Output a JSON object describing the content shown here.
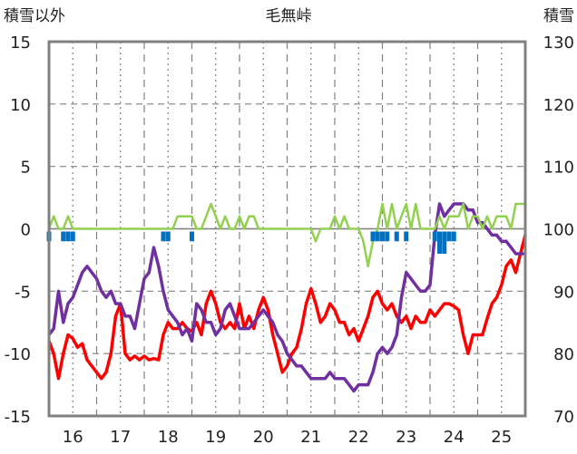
{
  "header": {
    "left_label": "積雪以外",
    "title": "毛無峠",
    "right_label": "積雪"
  },
  "chart_data": {
    "type": "line",
    "title": "毛無峠",
    "y_left_label": "積雪以外",
    "y_right_label": "積雪",
    "x_range": [
      15.5,
      25.5
    ],
    "ylim_left": [
      -15,
      15
    ],
    "ylim_right": [
      70,
      130
    ],
    "x_ticks": [
      "16",
      "17",
      "18",
      "19",
      "20",
      "21",
      "22",
      "23",
      "24",
      "25"
    ],
    "y_left_ticks": [
      "15",
      "10",
      "5",
      "0",
      "-5",
      "-10",
      "-15"
    ],
    "y_right_ticks": [
      "130",
      "120",
      "110",
      "100",
      "90",
      "80",
      "70"
    ],
    "grid": true,
    "colors": {
      "temperature": "#ff0000",
      "snow_depth": "#7030a0",
      "wind": "#92d050",
      "precipitation": "#0070c0",
      "frame": "#808080",
      "grid": "#808080"
    },
    "series": [
      {
        "key": "temperature",
        "axis": "left",
        "x": [
          15.5,
          15.6,
          15.7,
          15.8,
          15.9,
          16.0,
          16.1,
          16.2,
          16.3,
          16.4,
          16.5,
          16.6,
          16.7,
          16.8,
          16.9,
          17.0,
          17.1,
          17.2,
          17.3,
          17.4,
          17.5,
          17.6,
          17.7,
          17.8,
          17.9,
          18.0,
          18.1,
          18.2,
          18.3,
          18.4,
          18.5,
          18.6,
          18.7,
          18.8,
          18.9,
          19.0,
          19.1,
          19.2,
          19.3,
          19.4,
          19.5,
          19.6,
          19.7,
          19.8,
          19.9,
          20.0,
          20.1,
          20.2,
          20.3,
          20.4,
          20.5,
          20.6,
          20.7,
          20.8,
          20.9,
          21.0,
          21.1,
          21.2,
          21.3,
          21.4,
          21.5,
          21.6,
          21.7,
          21.8,
          21.9,
          22.0,
          22.1,
          22.2,
          22.3,
          22.4,
          22.5,
          22.6,
          22.7,
          22.8,
          22.9,
          23.0,
          23.1,
          23.2,
          23.3,
          23.4,
          23.5,
          23.6,
          23.7,
          23.8,
          23.9,
          24.0,
          24.1,
          24.2,
          24.3,
          24.4,
          24.5,
          24.6,
          24.7,
          24.8,
          24.9,
          25.0,
          25.1,
          25.2,
          25.3,
          25.4,
          25.5
        ],
        "y": [
          -9,
          -10,
          -12,
          -10,
          -8.5,
          -8.8,
          -9.5,
          -9.2,
          -10.5,
          -11,
          -11.5,
          -12,
          -11.5,
          -10,
          -7,
          -6,
          -10,
          -10.5,
          -10.2,
          -10.5,
          -10.2,
          -10.5,
          -10.4,
          -10.5,
          -8.5,
          -7.5,
          -8,
          -8,
          -7.5,
          -8,
          -8.2,
          -7.5,
          -8.5,
          -6,
          -5,
          -6,
          -7.5,
          -8,
          -7.5,
          -8,
          -6,
          -8,
          -7,
          -8,
          -6.5,
          -5.5,
          -6.5,
          -8.5,
          -10,
          -11.5,
          -11,
          -10,
          -9.5,
          -8,
          -6,
          -4.8,
          -6,
          -7.5,
          -7,
          -6,
          -6.5,
          -7.5,
          -7.5,
          -8.5,
          -8,
          -9,
          -8,
          -7,
          -5.5,
          -5,
          -6,
          -6.5,
          -6,
          -7,
          -7.5,
          -7,
          -8,
          -7,
          -7.5,
          -7.5,
          -6.5,
          -7,
          -6.5,
          -6,
          -6,
          -6.2,
          -6.5,
          -8.5,
          -10,
          -8.5,
          -8.5,
          -8.5,
          -7.2,
          -6,
          -5.5,
          -4.5,
          -3,
          -2.5,
          -3.5,
          -2,
          -0.5
        ]
      },
      {
        "key": "snow_depth",
        "axis": "right",
        "x": [
          15.5,
          15.6,
          15.7,
          15.8,
          15.9,
          16.0,
          16.1,
          16.2,
          16.3,
          16.4,
          16.5,
          16.6,
          16.7,
          16.8,
          16.9,
          17.0,
          17.1,
          17.2,
          17.3,
          17.4,
          17.5,
          17.6,
          17.7,
          17.8,
          17.9,
          18.0,
          18.1,
          18.2,
          18.3,
          18.4,
          18.5,
          18.6,
          18.7,
          18.8,
          18.9,
          19.0,
          19.1,
          19.2,
          19.3,
          19.4,
          19.5,
          19.6,
          19.7,
          19.8,
          19.9,
          20.0,
          20.1,
          20.2,
          20.3,
          20.4,
          20.5,
          20.6,
          20.7,
          20.8,
          20.9,
          21.0,
          21.1,
          21.2,
          21.3,
          21.4,
          21.5,
          21.6,
          21.7,
          21.8,
          21.9,
          22.0,
          22.1,
          22.2,
          22.3,
          22.4,
          22.5,
          22.6,
          22.7,
          22.8,
          22.9,
          23.0,
          23.1,
          23.2,
          23.3,
          23.4,
          23.5,
          23.6,
          23.7,
          23.8,
          23.9,
          24.0,
          24.1,
          24.2,
          24.3,
          24.4,
          24.5,
          24.6,
          24.7,
          24.8,
          24.9,
          25.0,
          25.1,
          25.2,
          25.3,
          25.4,
          25.5
        ],
        "y": [
          83,
          84,
          90,
          85,
          88,
          89,
          91,
          93,
          94,
          93,
          92,
          90,
          89,
          90,
          88,
          88,
          86,
          86,
          84,
          88,
          92,
          93,
          97,
          94,
          90,
          87,
          86,
          85,
          83,
          84,
          82,
          88,
          87,
          85,
          85,
          83,
          84,
          87,
          88,
          86,
          84,
          84,
          84,
          85,
          86,
          87,
          86,
          85,
          83,
          82,
          80,
          79,
          78,
          78,
          77,
          76,
          76,
          76,
          76,
          77,
          76,
          76,
          76,
          75,
          74,
          75,
          75,
          75,
          77,
          80,
          81,
          80,
          81,
          83,
          89,
          93,
          92,
          91,
          90,
          90,
          91,
          99,
          104,
          102,
          103,
          104,
          104,
          104,
          103,
          103,
          101,
          101,
          100,
          99,
          99,
          98,
          98,
          97,
          96,
          96,
          96
        ]
      },
      {
        "key": "wind",
        "axis": "left",
        "x": [
          15.5,
          15.6,
          15.7,
          15.8,
          15.9,
          16.0,
          16.1,
          16.2,
          16.3,
          16.4,
          16.5,
          16.6,
          16.7,
          16.8,
          16.9,
          17.0,
          17.1,
          17.2,
          17.3,
          17.4,
          17.5,
          17.6,
          17.7,
          17.8,
          17.9,
          18.0,
          18.1,
          18.2,
          18.3,
          18.4,
          18.5,
          18.6,
          18.7,
          18.8,
          18.9,
          19.0,
          19.1,
          19.2,
          19.3,
          19.4,
          19.5,
          19.6,
          19.7,
          19.8,
          19.9,
          20.0,
          20.1,
          20.2,
          20.3,
          20.4,
          20.5,
          20.6,
          20.7,
          20.8,
          20.9,
          21.0,
          21.1,
          21.2,
          21.3,
          21.4,
          21.5,
          21.6,
          21.7,
          21.8,
          21.9,
          22.0,
          22.1,
          22.2,
          22.3,
          22.4,
          22.5,
          22.6,
          22.7,
          22.8,
          22.9,
          23.0,
          23.1,
          23.2,
          23.3,
          23.4,
          23.5,
          23.6,
          23.7,
          23.8,
          23.9,
          24.0,
          24.1,
          24.2,
          24.3,
          24.4,
          24.5,
          24.6,
          24.7,
          24.8,
          24.9,
          25.0,
          25.1,
          25.2,
          25.3,
          25.4,
          25.5
        ],
        "y": [
          0,
          1,
          0,
          0,
          1,
          0,
          0,
          0,
          0,
          0,
          0,
          0,
          0,
          0,
          0,
          0,
          0,
          0,
          0,
          0,
          0,
          0,
          0,
          0,
          0,
          0,
          0,
          1,
          1,
          1,
          1,
          0,
          0,
          1,
          2,
          1,
          0,
          1,
          0,
          0,
          1,
          0,
          1,
          1,
          0,
          0,
          0,
          0,
          0,
          0,
          0,
          0,
          0,
          0,
          0,
          0,
          -1,
          0,
          0,
          0,
          1,
          0,
          1,
          0,
          0,
          0,
          -1,
          -3,
          -1,
          0,
          2,
          0,
          2,
          0,
          1,
          2,
          0,
          2,
          0,
          0,
          0,
          0,
          1,
          0,
          1,
          1,
          1,
          2,
          0,
          1,
          1,
          0,
          1,
          0,
          1,
          1,
          1,
          0,
          2,
          2,
          2
        ]
      },
      {
        "key": "precipitation",
        "axis": "left",
        "x": [
          15.5,
          15.8,
          15.9,
          16.0,
          17.9,
          18.0,
          18.5,
          22.3,
          22.4,
          22.5,
          22.6,
          22.8,
          23.0,
          23.6,
          23.7,
          23.8,
          23.9,
          24.0
        ],
        "y": [
          -1,
          -1,
          -1,
          -1,
          -1,
          -1,
          -1,
          -1,
          -1,
          -1,
          -1,
          -1,
          -1,
          -1,
          -2,
          -2,
          -1,
          -1
        ]
      }
    ]
  }
}
